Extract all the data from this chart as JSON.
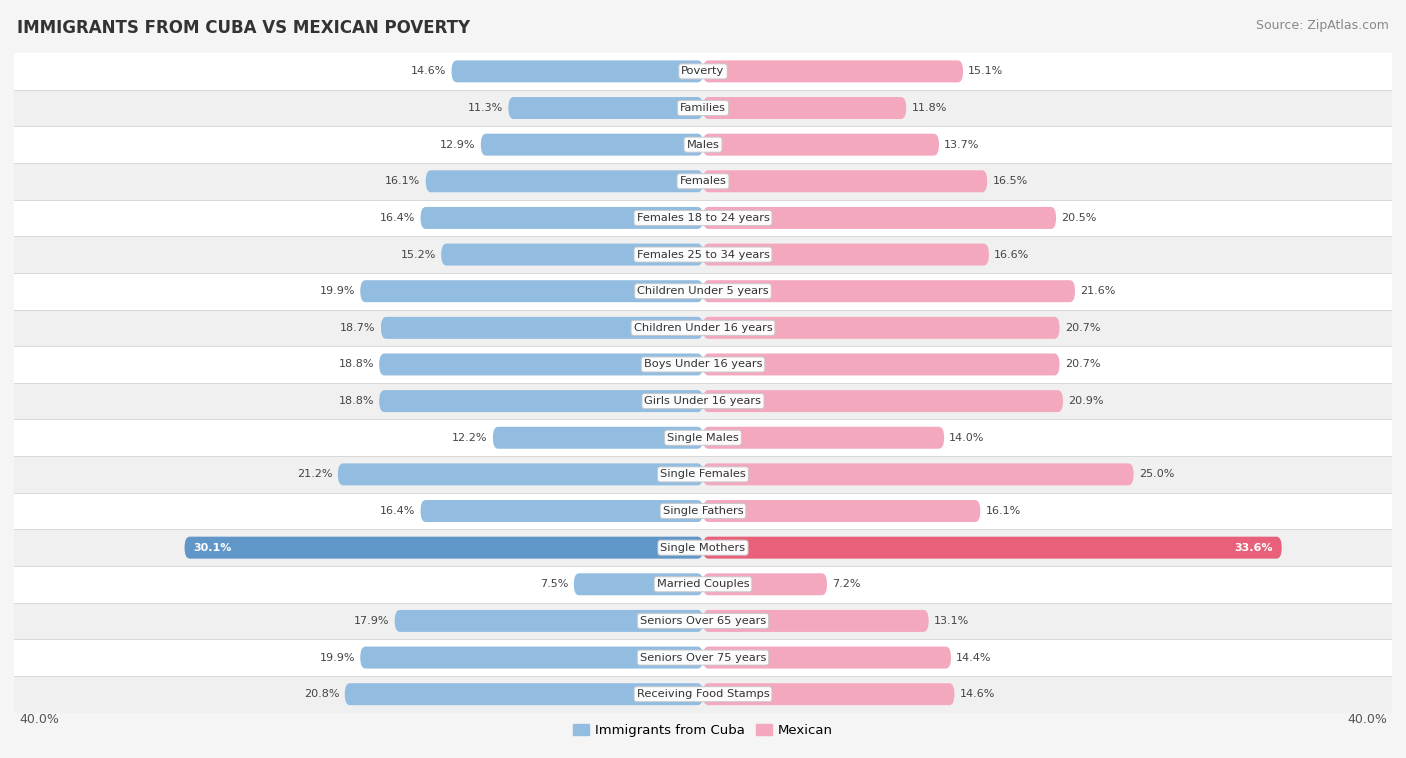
{
  "title": "IMMIGRANTS FROM CUBA VS MEXICAN POVERTY",
  "source": "Source: ZipAtlas.com",
  "categories": [
    "Poverty",
    "Families",
    "Males",
    "Females",
    "Females 18 to 24 years",
    "Females 25 to 34 years",
    "Children Under 5 years",
    "Children Under 16 years",
    "Boys Under 16 years",
    "Girls Under 16 years",
    "Single Males",
    "Single Females",
    "Single Fathers",
    "Single Mothers",
    "Married Couples",
    "Seniors Over 65 years",
    "Seniors Over 75 years",
    "Receiving Food Stamps"
  ],
  "cuba_values": [
    14.6,
    11.3,
    12.9,
    16.1,
    16.4,
    15.2,
    19.9,
    18.7,
    18.8,
    18.8,
    12.2,
    21.2,
    16.4,
    30.1,
    7.5,
    17.9,
    19.9,
    20.8
  ],
  "mexican_values": [
    15.1,
    11.8,
    13.7,
    16.5,
    20.5,
    16.6,
    21.6,
    20.7,
    20.7,
    20.9,
    14.0,
    25.0,
    16.1,
    33.6,
    7.2,
    13.1,
    14.4,
    14.6
  ],
  "cuba_color": "#92bde0",
  "mexican_color": "#f4a8be",
  "cuba_highlight_color": "#6096c8",
  "mexican_highlight_color": "#e8607a",
  "row_bg_white": "#ffffff",
  "row_bg_gray": "#f0f0f0",
  "background_color": "#f5f5f5",
  "separator_color": "#d8d8d8",
  "max_value": 40.0,
  "legend_cuba": "Immigrants from Cuba",
  "legend_mexican": "Mexican",
  "axis_label": "40.0%",
  "cuba_text_highlight_threshold": 28.0,
  "mexican_text_highlight_threshold": 28.0
}
